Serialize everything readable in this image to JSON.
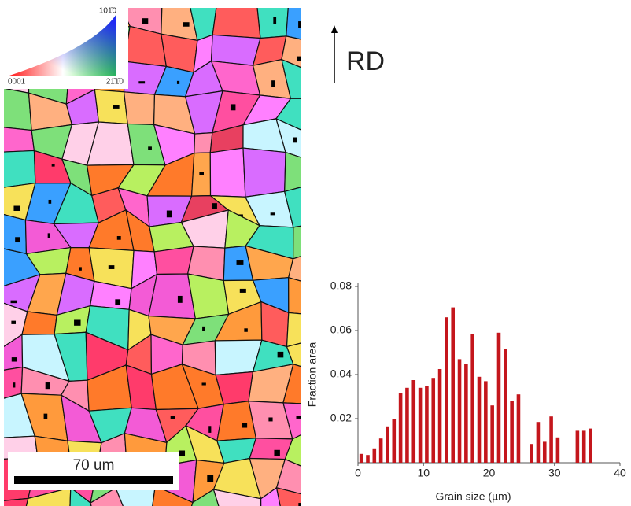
{
  "map": {
    "ipf_top": "101̄0",
    "ipf_left": "0001",
    "ipf_right": "21̄1̄0",
    "scale_label": "70 um",
    "direction": "RD"
  },
  "chart_data": {
    "type": "histogram",
    "ylabel": "Fraction area",
    "xlabel": "Grain size (µm)",
    "bins": [
      0,
      1,
      2,
      3,
      4,
      5,
      6,
      7,
      8,
      9,
      10,
      11,
      12,
      13,
      14,
      15,
      16,
      17,
      18,
      19,
      20,
      21,
      22,
      23,
      24,
      25,
      26,
      27,
      28,
      29,
      30,
      31,
      32,
      33,
      34,
      35,
      36
    ],
    "values": [
      0.004,
      0.0035,
      0.0065,
      0.011,
      0.0165,
      0.02,
      0.0315,
      0.034,
      0.0375,
      0.034,
      0.035,
      0.0385,
      0.0425,
      0.066,
      0.0705,
      0.047,
      0.045,
      0.0585,
      0.039,
      0.037,
      0.026,
      0.059,
      0.0515,
      0.028,
      0.031,
      0,
      0.0085,
      0.0185,
      0.0095,
      0.021,
      0.0115,
      0,
      0,
      0.0145,
      0.0145,
      0.0155
    ],
    "color": "#c4161c",
    "xlim": [
      0,
      40
    ],
    "xticks": [
      0,
      10,
      20,
      30,
      40
    ],
    "ylim": [
      0,
      0.08
    ],
    "yticks": [
      0.02,
      0.04,
      0.06,
      0.08
    ]
  }
}
